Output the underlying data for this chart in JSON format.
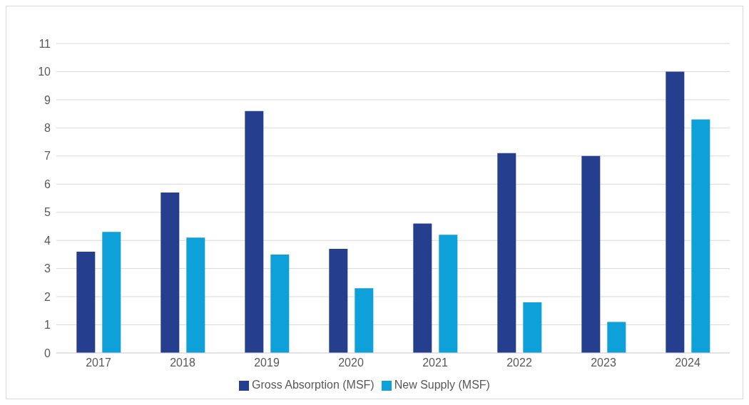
{
  "chart_data": {
    "type": "bar",
    "categories": [
      "2017",
      "2018",
      "2019",
      "2020",
      "2021",
      "2022",
      "2023",
      "2024"
    ],
    "series": [
      {
        "name": "Gross Absorption (MSF)",
        "color": "#253f8e",
        "values": [
          3.6,
          5.7,
          8.6,
          3.7,
          4.6,
          7.1,
          7.0,
          10.0
        ]
      },
      {
        "name": "New Supply (MSF)",
        "color": "#0ea0d8",
        "values": [
          4.3,
          4.1,
          3.5,
          2.3,
          4.2,
          1.8,
          1.1,
          8.3
        ]
      }
    ],
    "ylim": [
      0,
      11
    ],
    "yticks": [
      0,
      1,
      2,
      3,
      4,
      5,
      6,
      7,
      8,
      9,
      10,
      11
    ],
    "grid": "y",
    "legend": "bottom"
  }
}
